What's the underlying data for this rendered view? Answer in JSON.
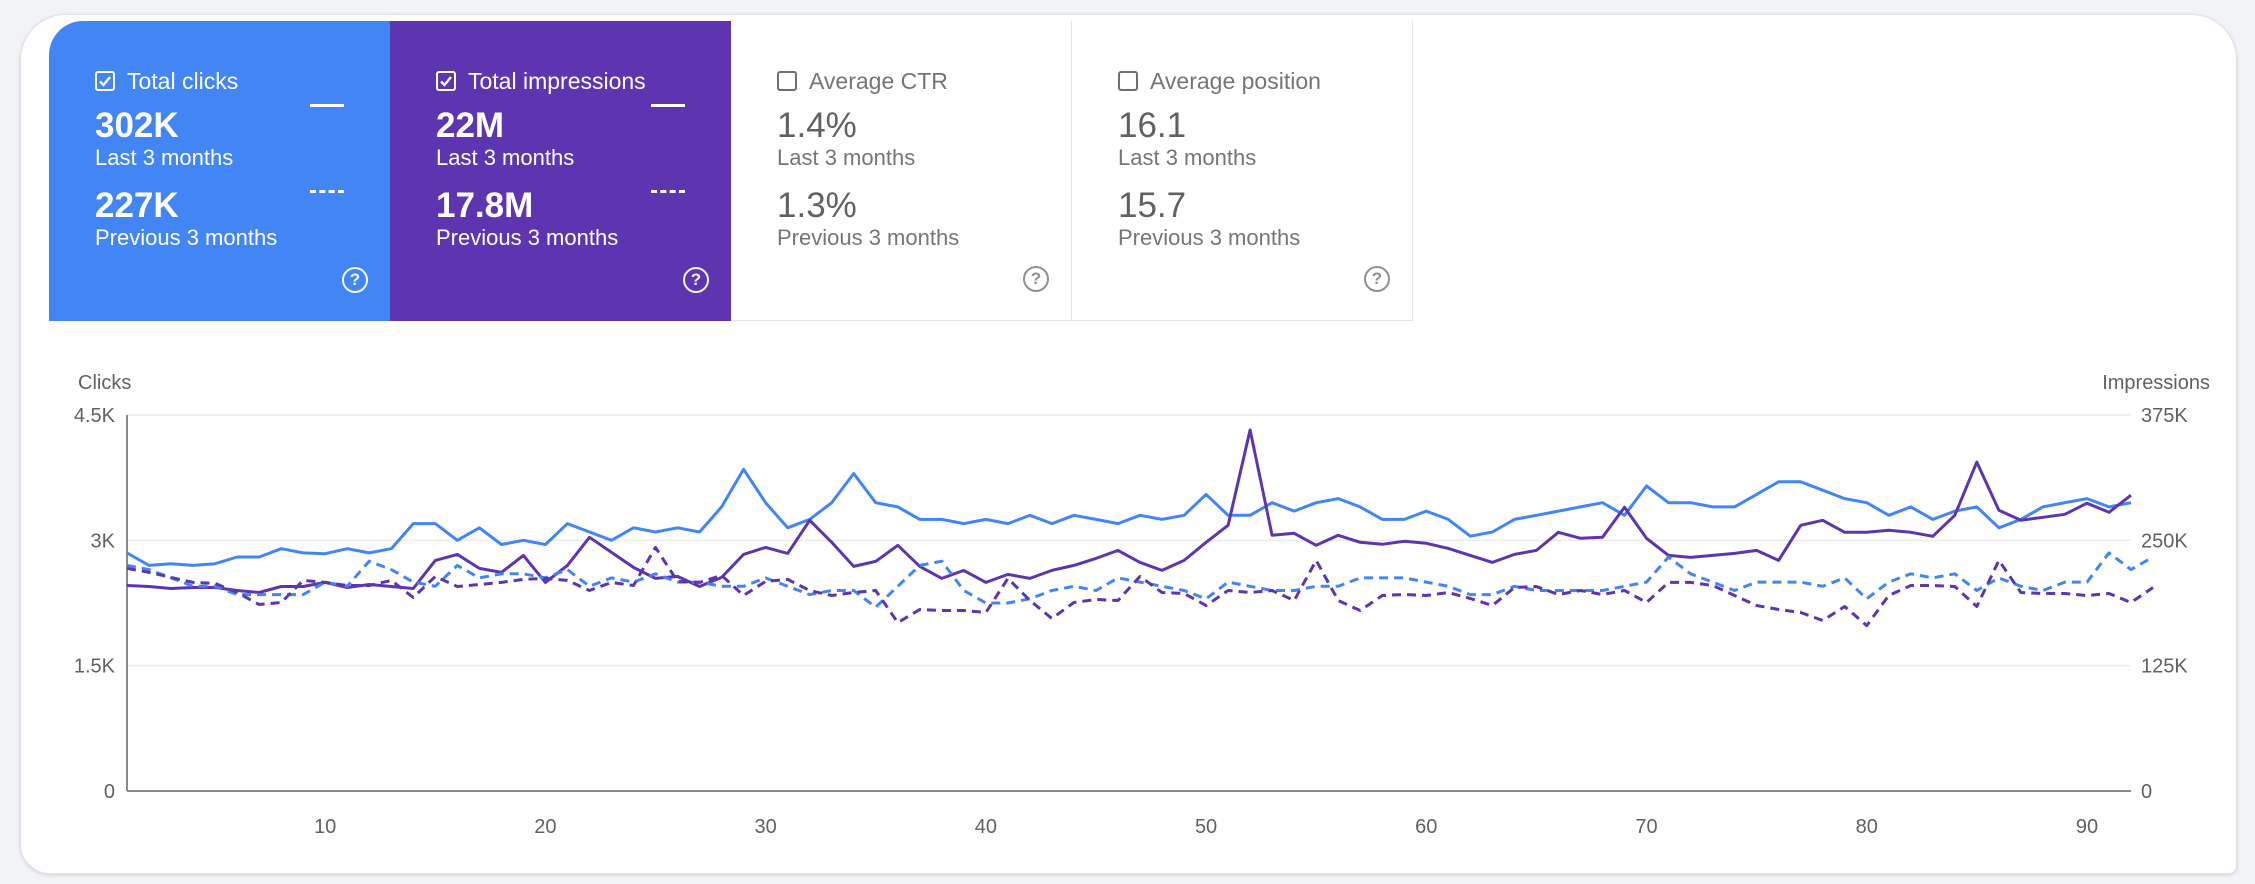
{
  "cards": [
    {
      "title": "Total clicks",
      "checked": true,
      "current": "302K",
      "current_period": "Last 3 months",
      "previous": "227K",
      "previous_period": "Previous 3 months",
      "color": "#4285f4",
      "help": "?"
    },
    {
      "title": "Total impressions",
      "checked": true,
      "current": "22M",
      "current_period": "Last 3 months",
      "previous": "17.8M",
      "previous_period": "Previous 3 months",
      "color": "#5e35b1",
      "help": "?"
    },
    {
      "title": "Average CTR",
      "checked": false,
      "current": "1.4%",
      "current_period": "Last 3 months",
      "previous": "1.3%",
      "previous_period": "Previous 3 months",
      "help": "?"
    },
    {
      "title": "Average position",
      "checked": false,
      "current": "16.1",
      "current_period": "Last 3 months",
      "previous": "15.7",
      "previous_period": "Previous 3 months",
      "help": "?"
    }
  ],
  "chart_data": {
    "type": "line",
    "y_left_label": "Clicks",
    "y_right_label": "Impressions",
    "y_left_ticks": [
      "4.5K",
      "3K",
      "1.5K",
      "0"
    ],
    "y_right_ticks": [
      "375K",
      "250K",
      "125K",
      "0"
    ],
    "x_ticks": [
      "10",
      "20",
      "30",
      "40",
      "50",
      "60",
      "70",
      "80",
      "90"
    ],
    "y_left_range": [
      0,
      4500
    ],
    "y_right_range": [
      0,
      375000
    ],
    "x_range": [
      1,
      92
    ],
    "grid": true,
    "legend": "none",
    "series": [
      {
        "axis": "left",
        "style": "solid",
        "color": "#4285f4",
        "values": [
          2850,
          2700,
          2720,
          2700,
          2720,
          2800,
          2800,
          2900,
          2850,
          2840,
          2900,
          2850,
          2900,
          3200,
          3200,
          3000,
          3150,
          2950,
          3000,
          2950,
          3200,
          3100,
          3000,
          3150,
          3100,
          3150,
          3100,
          3400,
          3850,
          3450,
          3150,
          3250,
          3450,
          3800,
          3450,
          3400,
          3250,
          3250,
          3200,
          3250,
          3200,
          3300,
          3200,
          3300,
          3250,
          3200,
          3300,
          3250,
          3300,
          3550,
          3300,
          3300,
          3450,
          3350,
          3450,
          3500,
          3400,
          3250,
          3250,
          3350,
          3250,
          3050,
          3100,
          3250,
          3300,
          3350,
          3400,
          3450,
          3300,
          3650,
          3450,
          3450,
          3400,
          3400,
          3550,
          3700,
          3700,
          3600,
          3500,
          3450,
          3300,
          3400,
          3250,
          3350,
          3400,
          3150,
          3250,
          3400,
          3450,
          3500,
          3400,
          3450
        ]
      },
      {
        "axis": "right",
        "style": "solid",
        "color": "#5e35b1",
        "values": [
          205000,
          204000,
          202000,
          203000,
          203000,
          200000,
          198000,
          204000,
          204000,
          208000,
          203000,
          206000,
          204000,
          202000,
          230000,
          236000,
          222000,
          218000,
          235000,
          208000,
          225000,
          253000,
          238000,
          223000,
          212000,
          214000,
          204000,
          213000,
          236000,
          243000,
          237000,
          270000,
          248000,
          224000,
          229000,
          245000,
          224000,
          212000,
          220000,
          208000,
          216000,
          212000,
          220000,
          225000,
          232000,
          240000,
          228000,
          220000,
          230000,
          248000,
          265000,
          360000,
          255000,
          257000,
          245000,
          255000,
          248000,
          246000,
          249000,
          247000,
          242000,
          235000,
          228000,
          236000,
          240000,
          258000,
          252000,
          253000,
          283000,
          252000,
          235000,
          233000,
          235000,
          237000,
          240000,
          230000,
          265000,
          270000,
          258000,
          258000,
          260000,
          258000,
          254000,
          275000,
          328000,
          280000,
          270000,
          273000,
          276000,
          287000,
          278000,
          295000
        ]
      },
      {
        "axis": "left",
        "style": "dashed",
        "color": "#4285f4",
        "values": [
          2700,
          2650,
          2550,
          2450,
          2450,
          2350,
          2350,
          2350,
          2350,
          2500,
          2450,
          2750,
          2650,
          2500,
          2450,
          2700,
          2550,
          2600,
          2600,
          2550,
          2650,
          2450,
          2550,
          2500,
          2600,
          2500,
          2500,
          2450,
          2450,
          2550,
          2450,
          2350,
          2400,
          2400,
          2200,
          2450,
          2700,
          2750,
          2400,
          2250,
          2250,
          2300,
          2400,
          2450,
          2400,
          2550,
          2500,
          2450,
          2400,
          2300,
          2500,
          2450,
          2400,
          2400,
          2450,
          2450,
          2550,
          2550,
          2550,
          2500,
          2450,
          2350,
          2350,
          2450,
          2400,
          2400,
          2400,
          2400,
          2450,
          2500,
          2800,
          2600,
          2500,
          2400,
          2500,
          2500,
          2500,
          2450,
          2550,
          2300,
          2500,
          2600,
          2550,
          2600,
          2400,
          2550,
          2450,
          2400,
          2500,
          2500,
          2850,
          2650,
          2800
        ]
      },
      {
        "axis": "right",
        "style": "dashed",
        "color": "#5e35b1",
        "values": [
          222000,
          218000,
          213000,
          208000,
          207000,
          198000,
          186000,
          188000,
          210000,
          208000,
          205000,
          205000,
          210000,
          193000,
          214000,
          204000,
          206000,
          208000,
          211000,
          212000,
          210000,
          200000,
          208000,
          205000,
          243000,
          209000,
          208000,
          215000,
          195000,
          209000,
          211000,
          200000,
          195000,
          198000,
          200000,
          168000,
          181000,
          180000,
          180000,
          178000,
          212000,
          190000,
          172000,
          188000,
          191000,
          190000,
          214000,
          198000,
          197000,
          185000,
          200000,
          198000,
          200000,
          190000,
          230000,
          190000,
          180000,
          195000,
          196000,
          195000,
          198000,
          192000,
          185000,
          203000,
          204000,
          196000,
          200000,
          196000,
          200000,
          188000,
          208000,
          208000,
          205000,
          195000,
          185000,
          181000,
          178000,
          170000,
          184000,
          165000,
          195000,
          205000,
          205000,
          204000,
          184000,
          230000,
          198000,
          197000,
          197000,
          195000,
          197000,
          188000,
          203000
        ]
      }
    ]
  }
}
